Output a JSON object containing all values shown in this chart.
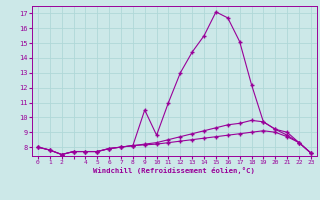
{
  "xlabel": "Windchill (Refroidissement éolien,°C)",
  "bg_color": "#cce8e8",
  "line_color": "#990099",
  "grid_color": "#b0d8d8",
  "xlim": [
    -0.5,
    23.5
  ],
  "ylim": [
    7.4,
    17.5
  ],
  "xticks": [
    0,
    1,
    2,
    3,
    4,
    5,
    6,
    7,
    8,
    9,
    10,
    11,
    12,
    13,
    14,
    15,
    16,
    17,
    18,
    19,
    20,
    21,
    22,
    23
  ],
  "xtick_labels": [
    "0",
    "1",
    "2",
    "",
    "4",
    "5",
    "6",
    "7",
    "8",
    "9",
    "10",
    "11",
    "12",
    "13",
    "14",
    "15",
    "16",
    "17",
    "18",
    "19",
    "20",
    "21",
    "22",
    "23"
  ],
  "yticks": [
    8,
    9,
    10,
    11,
    12,
    13,
    14,
    15,
    16,
    17
  ],
  "hours": [
    0,
    1,
    2,
    3,
    4,
    5,
    6,
    7,
    8,
    9,
    10,
    11,
    12,
    13,
    14,
    15,
    16,
    17,
    18,
    19,
    20,
    21,
    22,
    23
  ],
  "curve_main": [
    8.0,
    7.8,
    7.5,
    7.7,
    7.7,
    7.7,
    7.9,
    8.0,
    8.1,
    10.5,
    8.8,
    11.0,
    13.0,
    14.4,
    15.5,
    17.1,
    16.7,
    15.1,
    12.2,
    9.7,
    9.2,
    9.0,
    8.3,
    7.6
  ],
  "curve_mid": [
    8.0,
    7.8,
    7.5,
    7.7,
    7.7,
    7.7,
    7.9,
    8.0,
    8.1,
    8.2,
    8.3,
    8.5,
    8.7,
    8.9,
    9.1,
    9.3,
    9.5,
    9.6,
    9.8,
    9.7,
    9.2,
    8.8,
    8.3,
    7.6
  ],
  "curve_low": [
    8.0,
    7.8,
    7.5,
    7.7,
    7.7,
    7.7,
    7.9,
    8.0,
    8.1,
    8.15,
    8.2,
    8.3,
    8.4,
    8.5,
    8.6,
    8.7,
    8.8,
    8.9,
    9.0,
    9.1,
    9.0,
    8.7,
    8.3,
    7.6
  ]
}
